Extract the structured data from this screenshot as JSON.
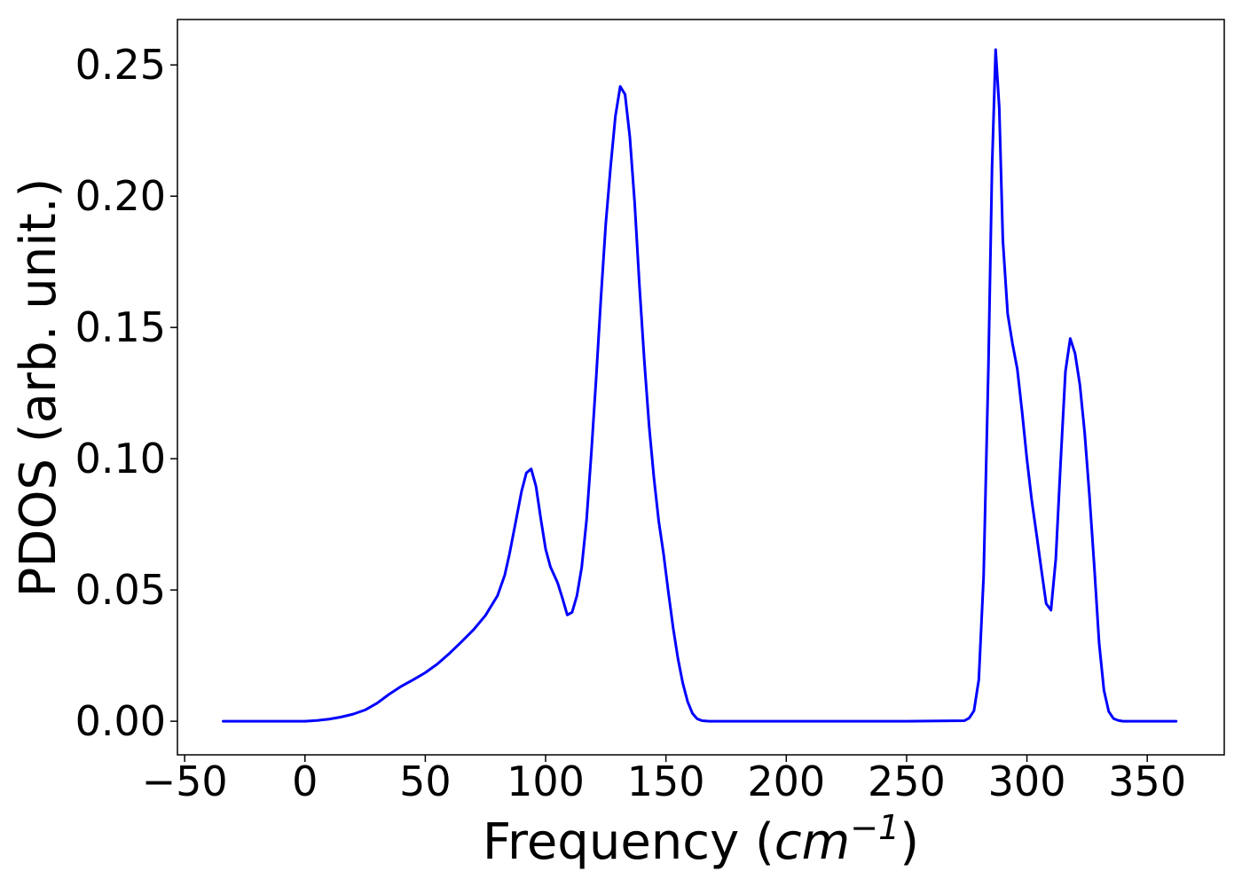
{
  "chart_data": {
    "type": "line",
    "title": "",
    "xlabel": "Frequency (cm⁻¹)",
    "xlabel_parts": {
      "before": "Frequency (",
      "math_base": "cm",
      "math_sup": "−1",
      "after": ")"
    },
    "ylabel": "PDOS (arb. unit.)",
    "xlim": [
      -53,
      382
    ],
    "ylim": [
      -0.0128,
      0.2673
    ],
    "xticks": [
      -50,
      0,
      50,
      100,
      150,
      200,
      250,
      300,
      350
    ],
    "xtick_labels": [
      "−50",
      "0",
      "50",
      "100",
      "150",
      "200",
      "250",
      "300",
      "350"
    ],
    "yticks": [
      0.0,
      0.05,
      0.1,
      0.15,
      0.2,
      0.25
    ],
    "ytick_labels": [
      "0.00",
      "0.05",
      "0.10",
      "0.15",
      "0.20",
      "0.25"
    ],
    "grid": false,
    "legend": "none",
    "series": [
      {
        "color": "#0000ff",
        "x": [
          -34,
          0,
          5,
          10,
          15,
          20,
          25,
          30,
          35,
          40,
          45,
          50,
          55,
          60,
          65,
          70,
          75,
          80,
          83,
          85,
          88,
          90,
          92,
          94,
          96,
          98,
          100,
          102,
          105,
          107,
          109,
          111,
          113,
          115,
          117,
          119,
          121,
          123,
          125,
          127,
          129,
          131,
          133,
          135,
          137,
          139,
          141,
          143,
          145,
          147,
          149,
          151,
          153,
          155,
          157,
          159,
          161,
          163,
          165,
          168,
          200,
          250,
          274,
          276,
          278,
          280,
          282,
          284,
          285.5,
          287,
          288.5,
          290,
          292,
          294,
          296,
          298,
          300,
          302,
          304,
          306,
          308,
          310,
          312,
          314,
          316,
          318,
          320,
          322,
          324,
          326,
          328,
          330,
          332,
          334,
          336,
          338,
          340,
          345,
          362
        ],
        "y": [
          0.0,
          0.0,
          0.0003,
          0.0008,
          0.0016,
          0.0027,
          0.0043,
          0.0069,
          0.0103,
          0.0133,
          0.0158,
          0.0185,
          0.0218,
          0.0258,
          0.0302,
          0.0348,
          0.0403,
          0.0478,
          0.0556,
          0.0638,
          0.078,
          0.0876,
          0.0946,
          0.0961,
          0.0895,
          0.0771,
          0.0656,
          0.0588,
          0.0527,
          0.0468,
          0.0405,
          0.0415,
          0.0478,
          0.0587,
          0.0765,
          0.1022,
          0.1307,
          0.1615,
          0.1896,
          0.2112,
          0.2305,
          0.2418,
          0.2388,
          0.2225,
          0.1975,
          0.1658,
          0.1375,
          0.1125,
          0.0928,
          0.0762,
          0.0638,
          0.0492,
          0.0355,
          0.0238,
          0.0145,
          0.0075,
          0.003,
          0.0009,
          0.0002,
          0.0,
          0.0,
          0.0,
          0.0002,
          0.0012,
          0.004,
          0.0158,
          0.0552,
          0.1352,
          0.2108,
          0.2558,
          0.2338,
          0.1832,
          0.1552,
          0.1438,
          0.1342,
          0.1178,
          0.0998,
          0.0842,
          0.0712,
          0.0578,
          0.0448,
          0.0423,
          0.0618,
          0.0985,
          0.1332,
          0.1458,
          0.1401,
          0.1282,
          0.1098,
          0.0858,
          0.0588,
          0.0298,
          0.0118,
          0.0037,
          0.001,
          0.0003,
          0.0,
          0.0,
          0.0
        ]
      }
    ]
  }
}
